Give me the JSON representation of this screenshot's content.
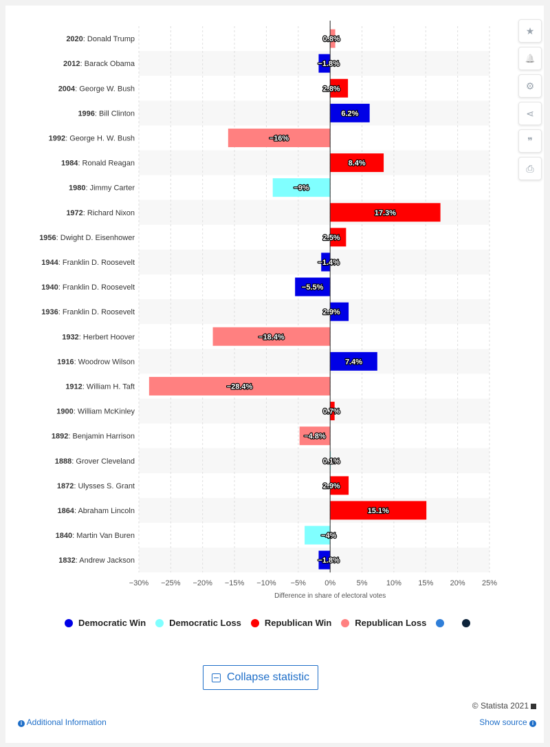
{
  "chart_data": {
    "type": "bar",
    "orientation": "horizontal",
    "xlabel": "Difference in share of electoral votes",
    "xlim": [
      -30,
      25
    ],
    "xticks": [
      -30,
      -25,
      -20,
      -15,
      -10,
      -5,
      0,
      5,
      10,
      15,
      20,
      25
    ],
    "xtick_labels": [
      "−30%",
      "−25%",
      "−20%",
      "−15%",
      "−10%",
      "−5%",
      "0%",
      "5%",
      "10%",
      "15%",
      "20%",
      "25%"
    ],
    "grid": true,
    "categories": [
      {
        "year": "2020",
        "name": ": Donald Trump",
        "value": 0.8,
        "label": "0.8%",
        "group": "rep_loss"
      },
      {
        "year": "2012",
        "name": ": Barack Obama",
        "value": -1.8,
        "label": "−1.8%",
        "group": "dem_win"
      },
      {
        "year": "2004",
        "name": ": George W. Bush",
        "value": 2.8,
        "label": "2.8%",
        "group": "rep_win"
      },
      {
        "year": "1996",
        "name": ": Bill Clinton",
        "value": 6.2,
        "label": "6.2%",
        "group": "dem_win"
      },
      {
        "year": "1992",
        "name": ": George H. W. Bush",
        "value": -16,
        "label": "−16%",
        "group": "rep_loss"
      },
      {
        "year": "1984",
        "name": ": Ronald Reagan",
        "value": 8.4,
        "label": "8.4%",
        "group": "rep_win"
      },
      {
        "year": "1980",
        "name": ": Jimmy Carter",
        "value": -9,
        "label": "−9%",
        "group": "dem_loss"
      },
      {
        "year": "1972",
        "name": ": Richard Nixon",
        "value": 17.3,
        "label": "17.3%",
        "group": "rep_win"
      },
      {
        "year": "1956",
        "name": ": Dwight D. Eisenhower",
        "value": 2.5,
        "label": "2.5%",
        "group": "rep_win"
      },
      {
        "year": "1944",
        "name": ": Franklin D. Roosevelt",
        "value": -1.4,
        "label": "−1.4%",
        "group": "dem_win"
      },
      {
        "year": "1940",
        "name": ": Franklin D. Roosevelt",
        "value": -5.5,
        "label": "−5.5%",
        "group": "dem_win"
      },
      {
        "year": "1936",
        "name": ": Franklin D. Roosevelt",
        "value": 2.9,
        "label": "2.9%",
        "group": "dem_win"
      },
      {
        "year": "1932",
        "name": ": Herbert Hoover",
        "value": -18.4,
        "label": "−18.4%",
        "group": "rep_loss"
      },
      {
        "year": "1916",
        "name": ": Woodrow Wilson",
        "value": 7.4,
        "label": "7.4%",
        "group": "dem_win"
      },
      {
        "year": "1912",
        "name": ": William H. Taft",
        "value": -28.4,
        "label": "−28.4%",
        "group": "rep_loss"
      },
      {
        "year": "1900",
        "name": ": William McKinley",
        "value": 0.7,
        "label": "0.7%",
        "group": "rep_win"
      },
      {
        "year": "1892",
        "name": ": Benjamin Harrison",
        "value": -4.8,
        "label": "−4.8%",
        "group": "rep_loss"
      },
      {
        "year": "1888",
        "name": ": Grover Cleveland",
        "value": 0.1,
        "label": "0.1%",
        "group": "dem_loss"
      },
      {
        "year": "1872",
        "name": ": Ulysses S. Grant",
        "value": 2.9,
        "label": "2.9%",
        "group": "rep_win"
      },
      {
        "year": "1864",
        "name": ": Abraham Lincoln",
        "value": 15.1,
        "label": "15.1%",
        "group": "rep_win"
      },
      {
        "year": "1840",
        "name": ": Martin Van Buren",
        "value": -4,
        "label": "−4%",
        "group": "dem_loss"
      },
      {
        "year": "1832",
        "name": ": Andrew Jackson",
        "value": -1.8,
        "label": "−1.8%",
        "group": "dem_win"
      }
    ],
    "legend_placement": "bottom",
    "legend": [
      {
        "key": "dem_win",
        "label": "Democratic Win",
        "color": "#0000e6"
      },
      {
        "key": "dem_loss",
        "label": "Democratic Loss",
        "color": "#80ffff"
      },
      {
        "key": "rep_win",
        "label": "Republican Win",
        "color": "#ff0000"
      },
      {
        "key": "rep_loss",
        "label": "Republican Loss",
        "color": "#ff8080"
      },
      {
        "key": "extra_1",
        "label": "",
        "color": "#2f7ed8"
      },
      {
        "key": "extra_2",
        "label": "",
        "color": "#0d233a"
      }
    ]
  },
  "sidebar": {
    "buttons": [
      {
        "icon": "star-icon",
        "glyph": "★"
      },
      {
        "icon": "bell-icon",
        "glyph": "🔔"
      },
      {
        "icon": "gear-icon",
        "glyph": "⚙"
      },
      {
        "icon": "share-icon",
        "glyph": "⋖"
      },
      {
        "icon": "quote-icon",
        "glyph": "❞"
      },
      {
        "icon": "print-icon",
        "glyph": "⎙"
      }
    ]
  },
  "footer": {
    "collapse_label": "Collapse statistic",
    "credit": "© Statista 2021",
    "additional_info": "Additional Information",
    "show_source": "Show source"
  }
}
